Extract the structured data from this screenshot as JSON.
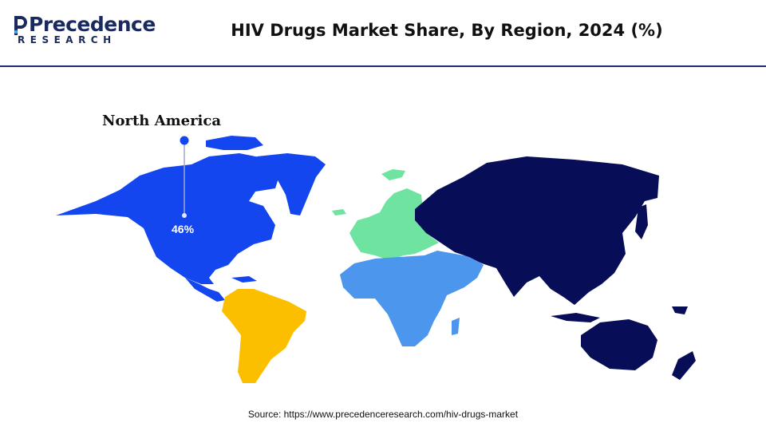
{
  "header": {
    "logo": {
      "word": "Precedence",
      "sub": "RESEARCH"
    },
    "title": "HIV Drugs Market Share, By Region, 2024 (%)"
  },
  "map": {
    "regions": [
      {
        "key": "north_america",
        "name": "North America",
        "share": "46%",
        "color": "#1446f0"
      },
      {
        "key": "latin_america",
        "color": "#fbbf00"
      },
      {
        "key": "europe",
        "color": "#6fe3a0"
      },
      {
        "key": "middle_east_africa",
        "color": "#4d96ee"
      },
      {
        "key": "asia_pacific",
        "color": "#070d57"
      }
    ],
    "marker_color": "#1446f0"
  },
  "footer": {
    "source": "Source: https://www.precedenceresearch.com/hiv-drugs-market"
  }
}
